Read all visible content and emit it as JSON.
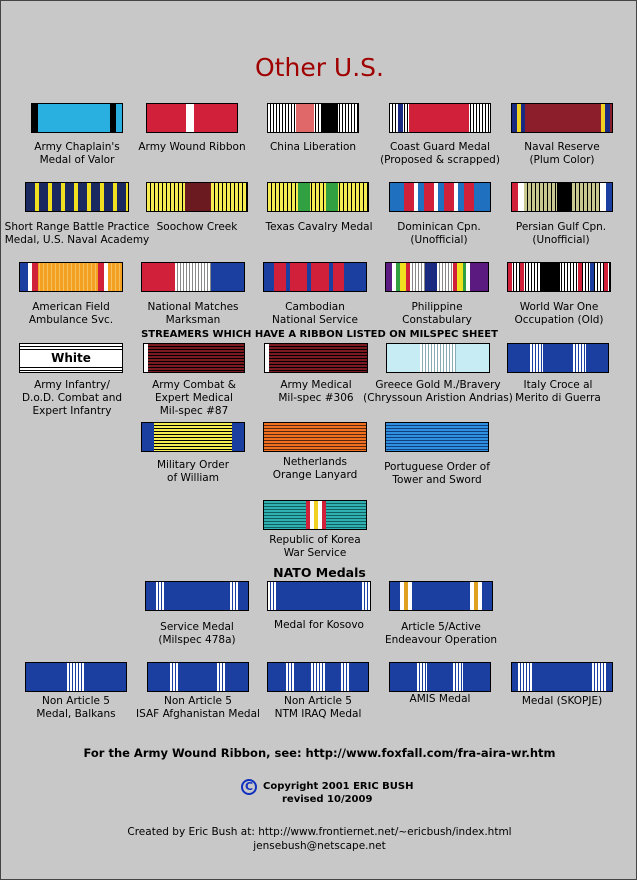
{
  "title": "Other U.S.",
  "ribbons": [
    {
      "key": "army-chaplain",
      "caption": [
        "Army Chaplain's",
        "Medal of Valor"
      ]
    },
    {
      "key": "army-wound",
      "caption": [
        "Army Wound Ribbon"
      ]
    },
    {
      "key": "china-liberation",
      "caption": [
        "China Liberation"
      ]
    },
    {
      "key": "coast-guard",
      "caption": [
        "Coast Guard Medal",
        "(Proposed & scrapped)"
      ]
    },
    {
      "key": "naval-reserve",
      "caption": [
        "Naval Reserve",
        "(Plum Color)"
      ]
    },
    {
      "key": "short-range",
      "caption": [
        "Short Range Battle Practice",
        "Medal, U.S. Naval Academy"
      ]
    },
    {
      "key": "soochow-creek",
      "caption": [
        "Soochow Creek"
      ]
    },
    {
      "key": "texas-cavalry",
      "caption": [
        "Texas Cavalry Medal"
      ]
    },
    {
      "key": "dominican",
      "caption": [
        "Dominican Cpn.",
        "(Unofficial)"
      ]
    },
    {
      "key": "persian-gulf",
      "caption": [
        "Persian Gulf Cpn.",
        "(Unofficial)"
      ]
    },
    {
      "key": "american-field",
      "caption": [
        "American Field",
        "Ambulance Svc."
      ]
    },
    {
      "key": "national-matches",
      "caption": [
        "National Matches",
        "Marksman"
      ]
    },
    {
      "key": "cambodian",
      "caption": [
        "Cambodian",
        "National Service"
      ]
    },
    {
      "key": "philippine",
      "caption": [
        "Philippine",
        "Constabulary"
      ]
    },
    {
      "key": "wwi-occupation",
      "caption": [
        "World War One",
        "Occupation (Old)"
      ]
    }
  ],
  "streamers_heading": "STREAMERS WHICH HAVE A RIBBON LISTED ON MILSPEC SHEET",
  "white_label": "White",
  "streamers": [
    {
      "key": "army-infantry",
      "caption": [
        "Army Infantry/",
        "D.o.D. Combat and",
        "Expert Infantry"
      ]
    },
    {
      "key": "army-combat",
      "caption": [
        "Army Combat  &",
        "Expert Medical",
        "Mil-spec #87"
      ]
    },
    {
      "key": "army-medical",
      "caption": [
        "Army Medical",
        "Mil-spec #306"
      ]
    },
    {
      "key": "greece-gold",
      "caption": [
        "Greece Gold M./Bravery",
        "(Chryssoun Aristion Andrias)"
      ]
    },
    {
      "key": "italy-croce",
      "caption": [
        "Italy Croce al",
        "Merito di Guerra"
      ]
    },
    {
      "key": "military-order-william",
      "caption": [
        "Military Order",
        "of William"
      ]
    },
    {
      "key": "netherlands-orange",
      "caption": [
        "Netherlands",
        "Orange  Lanyard"
      ]
    },
    {
      "key": "portuguese-tower",
      "caption": [
        "Portuguese Order of",
        "Tower and Sword"
      ]
    },
    {
      "key": "korea-war",
      "caption": [
        "Republic of Korea",
        "War Service"
      ]
    }
  ],
  "nato_heading": "NATO Medals",
  "nato": [
    {
      "key": "nato-service",
      "caption": [
        "Service Medal",
        "(Milspec 478a)"
      ]
    },
    {
      "key": "nato-kosovo",
      "caption": [
        "Medal for Kosovo"
      ]
    },
    {
      "key": "nato-article5",
      "caption": [
        "Article 5/Active",
        "Endeavour Operation"
      ]
    },
    {
      "key": "nato-balkans",
      "caption": [
        "Non Article 5",
        "Medal, Balkans"
      ]
    },
    {
      "key": "nato-isaf",
      "caption": [
        "Non Article 5",
        "ISAF Afghanistan Medal"
      ]
    },
    {
      "key": "nato-ntm-iraq",
      "caption": [
        "Non Article 5",
        "NTM IRAQ Medal"
      ]
    },
    {
      "key": "nato-amis",
      "caption": [
        "AMIS Medal"
      ]
    },
    {
      "key": "nato-skopje",
      "caption": [
        "Medal (SKOPJE)"
      ]
    }
  ],
  "footer": {
    "wound_note": "For the Army Wound Ribbon, see: http://www.foxfall.com/fra-aira-wr.htm",
    "copyright_symbol": "C",
    "copyright": "Copyright 2001 ERIC BUSH",
    "revised": "revised 10/2009",
    "created_by": "Created by Eric Bush at: http://www.frontiernet.net/~ericbush/index.html",
    "email": "jensebush@netscape.net"
  },
  "colors": {
    "title": "#a00000",
    "background": "#c8c8c8",
    "nato_blue": "#1a3fa0",
    "link_blue": "#1030c0"
  }
}
